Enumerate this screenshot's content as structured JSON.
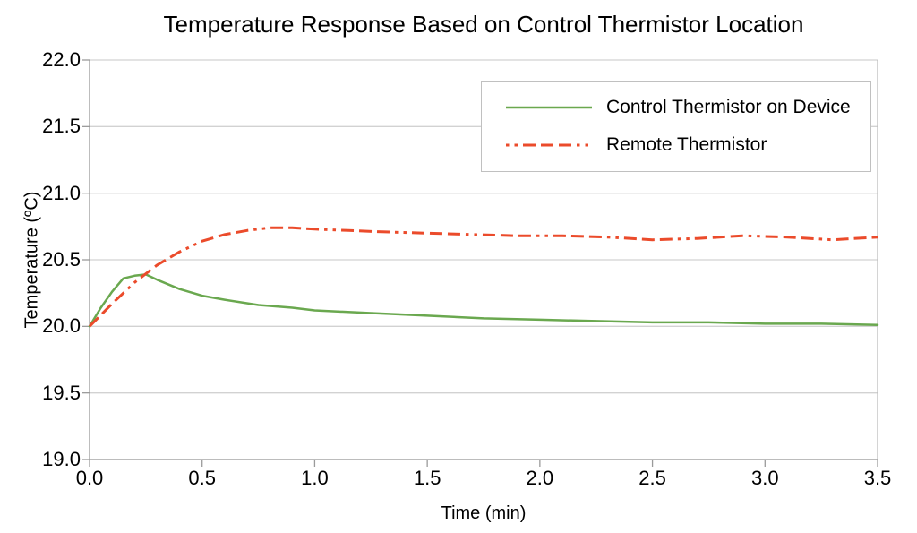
{
  "chart": {
    "title": "Temperature Response Based on Control Thermistor Location",
    "xlabel": "Time (min)",
    "ylabel": "Temperature (ºC)"
  },
  "colors": {
    "grid_line": "#d2d2d2",
    "axis_line": "#9a9a9a",
    "right_border": "#bdbdbd",
    "legend_border": "#c0c0c0",
    "text": "#000000",
    "background": "#ffffff"
  },
  "chart_data": {
    "type": "line",
    "title": "Temperature Response Based on Control Thermistor Location",
    "xlabel": "Time (min)",
    "ylabel": "Temperature (ºC)",
    "xlim": [
      0.0,
      3.5
    ],
    "ylim": [
      19.0,
      22.0
    ],
    "x_tick_labels": [
      "0.0",
      "0.5",
      "1.0",
      "1.5",
      "2.0",
      "2.5",
      "3.0",
      "3.5"
    ],
    "x_tick_values": [
      0.0,
      0.5,
      1.0,
      1.5,
      2.0,
      2.5,
      3.0,
      3.5
    ],
    "y_tick_labels": [
      "19.0",
      "19.5",
      "20.0",
      "20.5",
      "21.0",
      "21.5",
      "22.0"
    ],
    "y_tick_values": [
      19.0,
      19.5,
      20.0,
      20.5,
      21.0,
      21.5,
      22.0
    ],
    "grid": "horizontal",
    "legend_position": "top-right",
    "series": [
      {
        "name": "Control Thermistor on Device",
        "color": "#6aa84f",
        "style": "solid",
        "stroke_width": 2.5,
        "points": [
          [
            0.0,
            20.0
          ],
          [
            0.05,
            20.14
          ],
          [
            0.1,
            20.26
          ],
          [
            0.15,
            20.36
          ],
          [
            0.2,
            20.38
          ],
          [
            0.25,
            20.39
          ],
          [
            0.3,
            20.35
          ],
          [
            0.4,
            20.28
          ],
          [
            0.5,
            20.23
          ],
          [
            0.6,
            20.2
          ],
          [
            0.75,
            20.16
          ],
          [
            0.9,
            20.14
          ],
          [
            1.0,
            20.12
          ],
          [
            1.25,
            20.1
          ],
          [
            1.5,
            20.08
          ],
          [
            1.75,
            20.06
          ],
          [
            2.0,
            20.05
          ],
          [
            2.25,
            20.04
          ],
          [
            2.5,
            20.03
          ],
          [
            2.75,
            20.03
          ],
          [
            3.0,
            20.02
          ],
          [
            3.25,
            20.02
          ],
          [
            3.5,
            20.01
          ]
        ]
      },
      {
        "name": "Remote Thermistor",
        "color": "#eb4b2b",
        "style": "dash-dot-dot",
        "stroke_width": 3,
        "points": [
          [
            0.0,
            20.0
          ],
          [
            0.1,
            20.17
          ],
          [
            0.2,
            20.33
          ],
          [
            0.3,
            20.46
          ],
          [
            0.4,
            20.56
          ],
          [
            0.5,
            20.64
          ],
          [
            0.6,
            20.69
          ],
          [
            0.7,
            20.72
          ],
          [
            0.8,
            20.74
          ],
          [
            0.9,
            20.74
          ],
          [
            1.0,
            20.73
          ],
          [
            1.15,
            20.72
          ],
          [
            1.3,
            20.71
          ],
          [
            1.5,
            20.7
          ],
          [
            1.7,
            20.69
          ],
          [
            1.9,
            20.68
          ],
          [
            2.1,
            20.68
          ],
          [
            2.3,
            20.67
          ],
          [
            2.5,
            20.65
          ],
          [
            2.7,
            20.66
          ],
          [
            2.9,
            20.68
          ],
          [
            3.1,
            20.67
          ],
          [
            3.3,
            20.65
          ],
          [
            3.5,
            20.67
          ]
        ]
      }
    ]
  }
}
